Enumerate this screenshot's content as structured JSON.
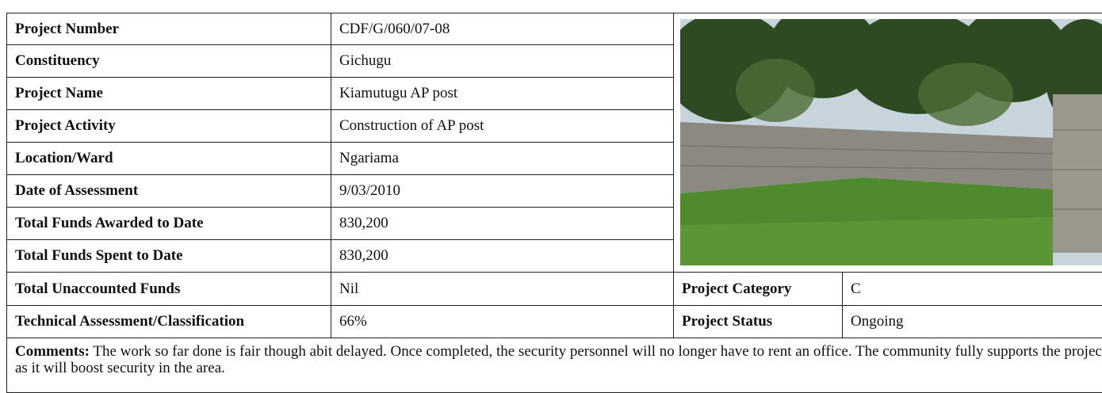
{
  "table": {
    "rows": [
      [
        "Project Number",
        "CDF/G/060/07-08"
      ],
      [
        "Constituency",
        "Gichugu"
      ],
      [
        "Project Name",
        "Kiamutugu AP post"
      ],
      [
        "Project Activity",
        "Construction of AP post"
      ],
      [
        "Location/Ward",
        "Ngariama"
      ],
      [
        "Date of Assessment",
        "9/03/2010"
      ],
      [
        "Total Funds Awarded to Date",
        "830,200"
      ],
      [
        "Total Funds Spent to Date",
        "830,200"
      ],
      [
        "Total Unaccounted Funds",
        "Nil"
      ],
      [
        "Technical Assessment/Classification",
        "66%"
      ]
    ],
    "side_rows": [
      [
        "Project Category",
        "C"
      ],
      [
        "Project Status",
        "Ongoing"
      ]
    ],
    "comments": {
      "label": "Comments:",
      "text": "The work so far done is fair though abit delayed.  Once completed, the security personnel will no longer have to rent an office.  The community fully supports the project as it will boost security in the area."
    }
  }
}
